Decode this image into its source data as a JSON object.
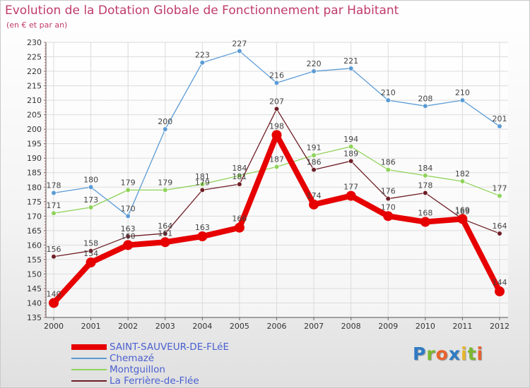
{
  "title": "Evolution de la Dotation Globale de Fonctionnement par Habitant",
  "subtitle": "(en € et par an)",
  "brand": {
    "text": "Proxiti",
    "colors": [
      "#2e7bc4",
      "#7cb82f",
      "#e8612c",
      "#2e7bc4",
      "#e8b72c",
      "#7cb82f",
      "#e8612c"
    ]
  },
  "chart_data": {
    "type": "line",
    "title": "Evolution de la Dotation Globale de Fonctionnement par Habitant",
    "ylabel": "(en € et par an)",
    "xlabel": "",
    "categories": [
      "2000",
      "2001",
      "2002",
      "2003",
      "2004",
      "2005",
      "2006",
      "2007",
      "2008",
      "2009",
      "2010",
      "2011",
      "2012"
    ],
    "ylim": [
      135,
      230
    ],
    "yticks": [
      135,
      140,
      145,
      150,
      155,
      160,
      165,
      170,
      175,
      180,
      185,
      190,
      195,
      200,
      205,
      210,
      215,
      220,
      225,
      230
    ],
    "grid": true,
    "series": [
      {
        "name": "Chemazé",
        "color": "#5b9bd5",
        "values": [
          178,
          180,
          170,
          200,
          223,
          227,
          216,
          220,
          221,
          210,
          208,
          210,
          201
        ]
      },
      {
        "name": "Montguillon",
        "color": "#8fd35a",
        "values": [
          171,
          173,
          179,
          179,
          181,
          184,
          187,
          191,
          194,
          186,
          184,
          182,
          177
        ]
      },
      {
        "name": "La Ferrière-de-Flée",
        "color": "#6e1e26",
        "values": [
          156,
          158,
          163,
          164,
          179,
          181,
          207,
          186,
          189,
          176,
          178,
          169,
          164
        ]
      },
      {
        "name": "SAINT-SAUVEUR-DE-FLéE",
        "color": "#e60000",
        "values": [
          140,
          154,
          160,
          161,
          163,
          166,
          198,
          174,
          177,
          170,
          168,
          169,
          144
        ]
      }
    ],
    "legend": [
      {
        "name": "SAINT-SAUVEUR-DE-FLéE",
        "color": "#e60000",
        "weight": "thick"
      },
      {
        "name": "Chemazé",
        "color": "#5b9bd5",
        "weight": "thin"
      },
      {
        "name": "Montguillon",
        "color": "#8fd35a",
        "weight": "thin"
      },
      {
        "name": "La Ferrière-de-Flée",
        "color": "#6e1e26",
        "weight": "thin"
      }
    ]
  }
}
